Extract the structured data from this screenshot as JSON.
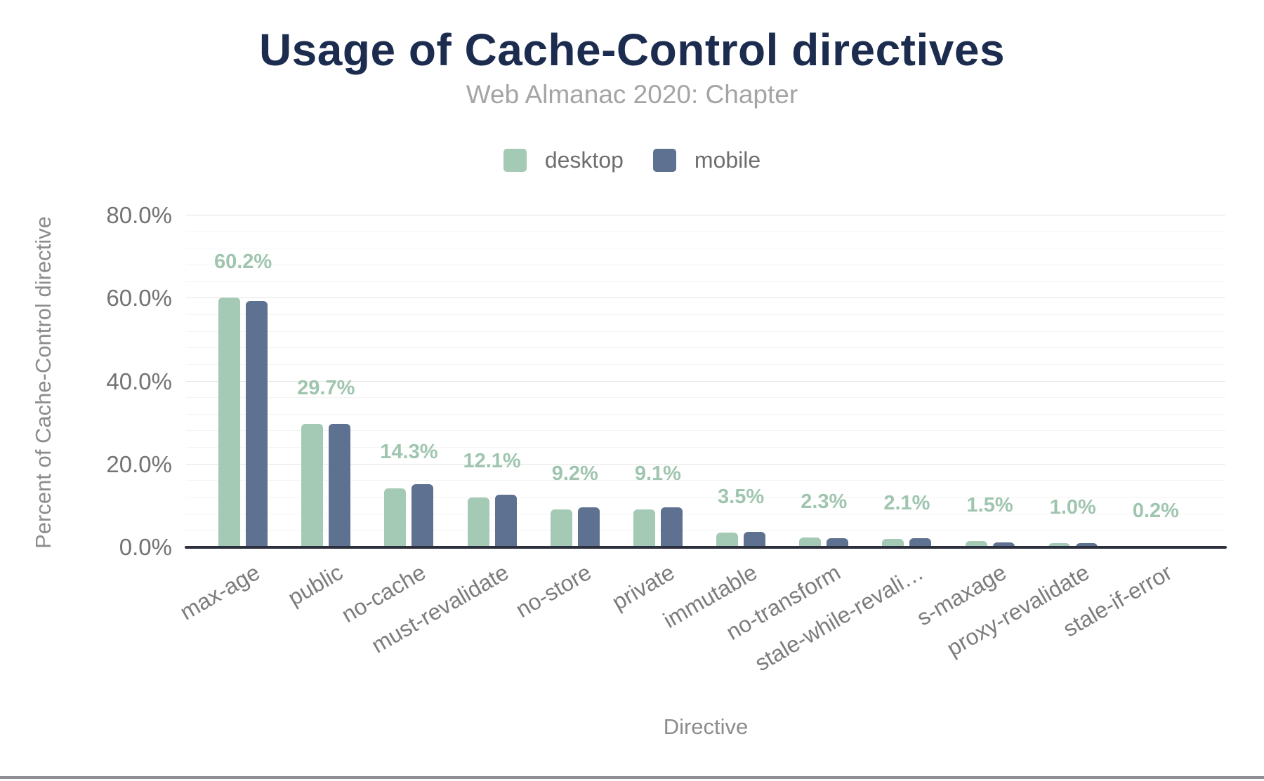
{
  "header": {
    "title": "Usage of Cache-Control directives",
    "subtitle": "Web Almanac 2020: Chapter"
  },
  "legend": {
    "items": [
      {
        "label": "desktop",
        "color": "#a4c9b4"
      },
      {
        "label": "mobile",
        "color": "#5e7190"
      }
    ]
  },
  "chart_data": {
    "type": "bar",
    "title": "Usage of Cache-Control directives",
    "subtitle": "Web Almanac 2020: Chapter",
    "xlabel": "Directive",
    "ylabel": "Percent of Cache-Control directive",
    "categories": [
      "max-age",
      "public",
      "no-cache",
      "must-revalidate",
      "no-store",
      "private",
      "immutable",
      "no-transform",
      "stale-while-revali…",
      "s-maxage",
      "proxy-revalidate",
      "stale-if-error"
    ],
    "series": [
      {
        "name": "desktop",
        "color": "#a4c9b4",
        "values": [
          60.2,
          29.7,
          14.3,
          12.1,
          9.2,
          9.1,
          3.5,
          2.3,
          2.1,
          1.5,
          1.0,
          0.2
        ]
      },
      {
        "name": "mobile",
        "color": "#5e7190",
        "values": [
          59.4,
          29.8,
          15.3,
          12.7,
          9.7,
          9.7,
          3.7,
          2.2,
          2.2,
          1.2,
          1.1,
          0.2
        ]
      }
    ],
    "data_labels": [
      "60.2%",
      "29.7%",
      "14.3%",
      "12.1%",
      "9.2%",
      "9.1%",
      "3.5%",
      "2.3%",
      "2.1%",
      "1.5%",
      "1.0%",
      "0.2%"
    ],
    "data_label_color": "#9fc5af",
    "yticks": [
      {
        "value": 0,
        "label": "0.0%"
      },
      {
        "value": 20,
        "label": "20.0%"
      },
      {
        "value": 40,
        "label": "40.0%"
      },
      {
        "value": 60,
        "label": "60.0%"
      },
      {
        "value": 80,
        "label": "80.0%"
      }
    ],
    "ylim": [
      0,
      80
    ],
    "major_tick": 20,
    "minor_tick": 4,
    "grid": true,
    "legend_position": "top"
  }
}
